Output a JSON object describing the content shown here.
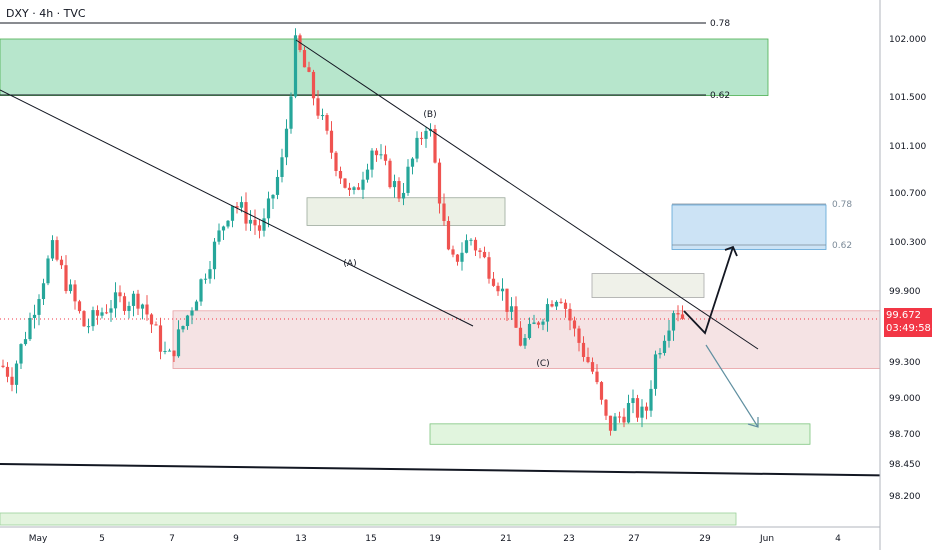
{
  "header": {
    "title": "DXY · 4h · TVC"
  },
  "last_price": {
    "value": "99.672",
    "countdown": "03:49:58"
  },
  "chart_data": {
    "type": "candlestick",
    "symbol": "DXY",
    "interval": "4h",
    "source": "TVC",
    "y_axis": {
      "ticks": [
        "102.000",
        "101.500",
        "101.100",
        "100.700",
        "100.300",
        "99.900",
        "99.300",
        "99.000",
        "98.700",
        "98.450",
        "98.200"
      ],
      "ylim": [
        98.0,
        102.25
      ]
    },
    "x_axis": {
      "ticks": [
        "May",
        "5",
        "7",
        "9",
        "13",
        "15",
        "19",
        "21",
        "23",
        "27",
        "29",
        "Jun",
        "4"
      ]
    },
    "wave_labels": [
      "(A)",
      "(B)",
      "(C)"
    ],
    "fib_labels": [
      {
        "label": "0.78",
        "zone": "upper"
      },
      {
        "label": "0.62",
        "zone": "upper"
      },
      {
        "label": "0.78",
        "zone": "target"
      },
      {
        "label": "0.62",
        "zone": "target"
      }
    ],
    "zones": [
      {
        "name": "supply-zone-top",
        "color": "#a5e0bf",
        "y_top": 102.0,
        "y_bottom": 101.53
      },
      {
        "name": "fib-target-zone",
        "color": "#bfdcf3",
        "y_top": 100.62,
        "y_bottom": 100.25
      },
      {
        "name": "pivot-zone",
        "color": "#f3dcdd",
        "y_top": 99.74,
        "y_bottom": 99.26
      },
      {
        "name": "demand-zone",
        "color": "#d9f3d6",
        "y_top": 98.8,
        "y_bottom": 98.63
      },
      {
        "name": "mid-box-1",
        "color": "#e7ede0",
        "y_top": 100.68,
        "y_bottom": 100.45
      },
      {
        "name": "mid-box-2",
        "color": "#ebeee4",
        "y_top": 100.05,
        "y_bottom": 99.85
      }
    ],
    "last_price": 99.672,
    "colors": {
      "up": "#26a69a",
      "down": "#ef5350",
      "line": "#131722",
      "bull_arrow": "#131722",
      "bear_arrow": "#5f8fa0"
    }
  }
}
